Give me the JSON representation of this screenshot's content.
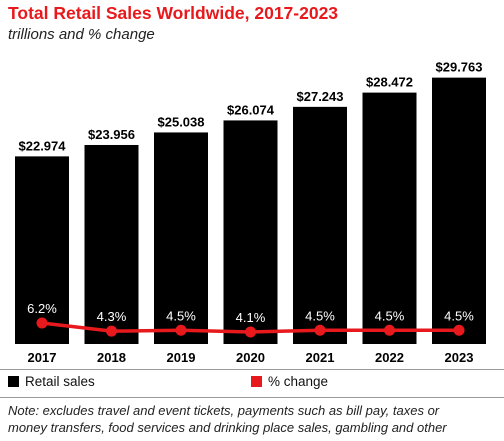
{
  "chart_data": {
    "type": "bar",
    "title": "Total Retail Sales Worldwide, 2017-2023",
    "subtitle": "trillions and % change",
    "categories": [
      "2017",
      "2018",
      "2019",
      "2020",
      "2021",
      "2022",
      "2023"
    ],
    "series": [
      {
        "name": "Retail sales",
        "type": "bar",
        "values": [
          22.974,
          23.956,
          25.038,
          26.074,
          27.243,
          28.472,
          29.763
        ],
        "labels": [
          "$22.974",
          "$23.956",
          "$25.038",
          "$26.074",
          "$27.243",
          "$28.472",
          "$29.763"
        ],
        "color": "#000000"
      },
      {
        "name": "% change",
        "type": "line",
        "values": [
          6.2,
          4.3,
          4.5,
          4.1,
          4.5,
          4.5,
          4.5
        ],
        "labels": [
          "6.2%",
          "4.3%",
          "4.5%",
          "4.1%",
          "4.5%",
          "4.5%",
          "4.5%"
        ],
        "color": "#e8191c"
      }
    ],
    "legend_position": "bottom",
    "grid": false
  },
  "note": {
    "line1": "Note: excludes travel and event tickets, payments such as bill pay, taxes or",
    "line2": "money transfers, food services and drinking place sales, gambling and other"
  }
}
